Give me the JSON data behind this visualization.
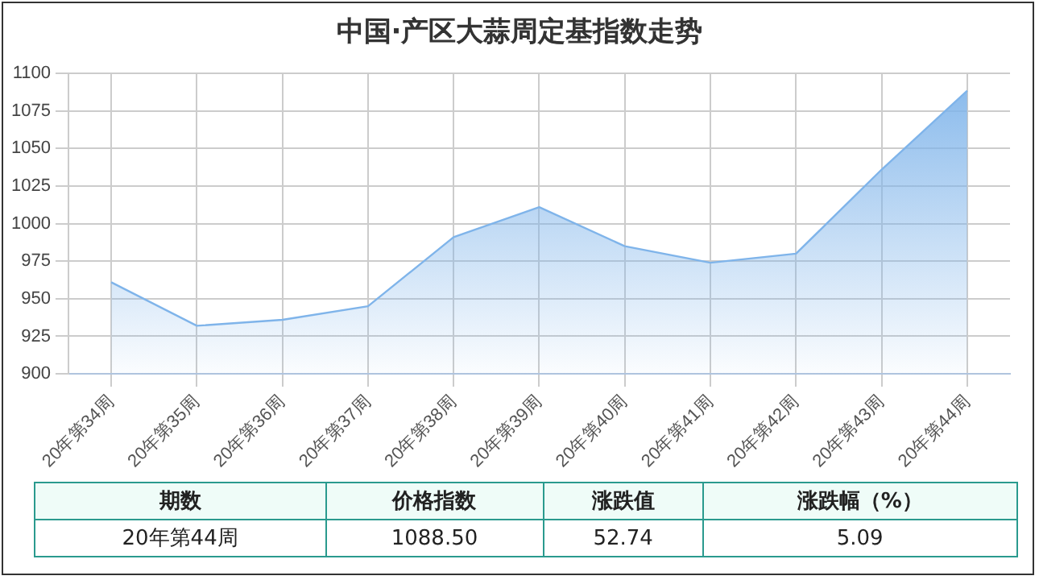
{
  "chart_data": {
    "type": "area",
    "title": "中国·产区大蒜周定基指数走势",
    "categories": [
      "20年第34周",
      "20年第35周",
      "20年第36周",
      "20年第37周",
      "20年第38周",
      "20年第39周",
      "20年第40周",
      "20年第41周",
      "20年第42周",
      "20年第43周",
      "20年第44周"
    ],
    "series": [
      {
        "color": "#7fb4ea",
        "values": [
          961,
          932,
          936,
          945,
          991,
          1011,
          985,
          974,
          980,
          1036,
          1088.5
        ]
      }
    ],
    "ylim": [
      900,
      1100
    ],
    "yticks": [
      900,
      925,
      950,
      975,
      1000,
      1025,
      1050,
      1075,
      1100
    ],
    "grid": true,
    "legend": false,
    "marker": "none",
    "annotations": [
      "期数",
      "价格指数",
      "涨跌值",
      "涨跌幅（%）",
      "20年第44周",
      "1088.50",
      "52.74",
      "5.09"
    ]
  }
}
